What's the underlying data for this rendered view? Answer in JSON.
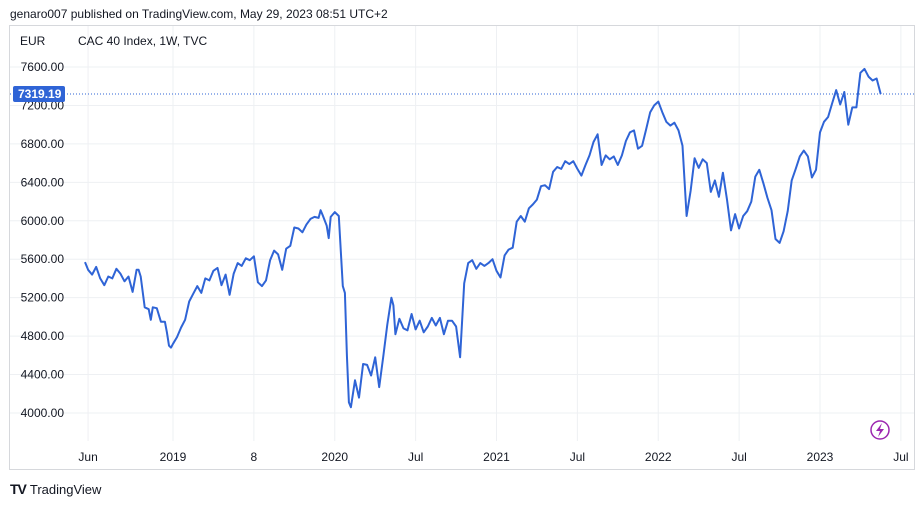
{
  "header": {
    "text": "genaro007 published on TradingView.com, May 29, 2023 08:51 UTC+2"
  },
  "footer": {
    "brand": "TradingView",
    "logo": "TV"
  },
  "colors": {
    "line": "#2f64d6",
    "grid": "#eef0f3",
    "axis_text": "#131722",
    "price_tag": "#2f64d6",
    "bolt": "#9c27b0"
  },
  "icons": {
    "bolt": "lightning-icon"
  },
  "chart_data": {
    "type": "line",
    "currency": "EUR",
    "title": "CAC 40 Index, 1W, TVC",
    "last_price_label": "7319.19",
    "last_price": 7319.19,
    "ylim": [
      3700,
      7950
    ],
    "y_ticks": [
      "4000.00",
      "4400.00",
      "4800.00",
      "5200.00",
      "5600.00",
      "6000.00",
      "6400.00",
      "6800.00",
      "7200.00",
      "7600.00"
    ],
    "x_ticks": [
      {
        "label": "Jun",
        "x": 0
      },
      {
        "label": "2019",
        "x": 4.2
      },
      {
        "label": "8",
        "x": 8.2
      },
      {
        "label": "2020",
        "x": 12.2
      },
      {
        "label": "Jul",
        "x": 16.2
      },
      {
        "label": "2021",
        "x": 20.2
      },
      {
        "label": "Jul",
        "x": 24.2
      },
      {
        "label": "2022",
        "x": 28.2
      },
      {
        "label": "Jul",
        "x": 32.2
      },
      {
        "label": "2023",
        "x": 36.2
      },
      {
        "label": "Jul",
        "x": 40.2
      }
    ],
    "grid": true,
    "series": [
      {
        "values": [
          [
            -0.15,
            5570
          ],
          [
            0,
            5490
          ],
          [
            0.2,
            5440
          ],
          [
            0.4,
            5520
          ],
          [
            0.6,
            5400
          ],
          [
            0.8,
            5330
          ],
          [
            1.0,
            5420
          ],
          [
            1.2,
            5400
          ],
          [
            1.4,
            5500
          ],
          [
            1.6,
            5450
          ],
          [
            1.8,
            5370
          ],
          [
            2.0,
            5420
          ],
          [
            2.2,
            5260
          ],
          [
            2.4,
            5490
          ],
          [
            2.5,
            5490
          ],
          [
            2.6,
            5420
          ],
          [
            2.8,
            5100
          ],
          [
            3.0,
            5080
          ],
          [
            3.1,
            4970
          ],
          [
            3.2,
            5100
          ],
          [
            3.4,
            5090
          ],
          [
            3.6,
            4950
          ],
          [
            3.8,
            4950
          ],
          [
            3.9,
            4840
          ],
          [
            4.0,
            4700
          ],
          [
            4.1,
            4680
          ],
          [
            4.2,
            4720
          ],
          [
            4.4,
            4790
          ],
          [
            4.6,
            4890
          ],
          [
            4.8,
            4970
          ],
          [
            5.0,
            5160
          ],
          [
            5.2,
            5240
          ],
          [
            5.4,
            5320
          ],
          [
            5.6,
            5250
          ],
          [
            5.8,
            5400
          ],
          [
            6.0,
            5380
          ],
          [
            6.2,
            5480
          ],
          [
            6.4,
            5510
          ],
          [
            6.6,
            5330
          ],
          [
            6.8,
            5440
          ],
          [
            7.0,
            5230
          ],
          [
            7.2,
            5450
          ],
          [
            7.4,
            5560
          ],
          [
            7.6,
            5530
          ],
          [
            7.8,
            5610
          ],
          [
            8.0,
            5590
          ],
          [
            8.2,
            5630
          ],
          [
            8.4,
            5360
          ],
          [
            8.6,
            5320
          ],
          [
            8.8,
            5380
          ],
          [
            9.0,
            5590
          ],
          [
            9.2,
            5690
          ],
          [
            9.4,
            5650
          ],
          [
            9.6,
            5490
          ],
          [
            9.8,
            5710
          ],
          [
            10.0,
            5740
          ],
          [
            10.2,
            5930
          ],
          [
            10.4,
            5920
          ],
          [
            10.6,
            5880
          ],
          [
            10.8,
            5960
          ],
          [
            11.0,
            6020
          ],
          [
            11.2,
            6040
          ],
          [
            11.4,
            6030
          ],
          [
            11.5,
            6110
          ],
          [
            11.6,
            6060
          ],
          [
            11.8,
            5950
          ],
          [
            11.9,
            5820
          ],
          [
            12.0,
            6040
          ],
          [
            12.2,
            6090
          ],
          [
            12.4,
            6050
          ],
          [
            12.6,
            5320
          ],
          [
            12.7,
            5250
          ],
          [
            12.8,
            4600
          ],
          [
            12.9,
            4110
          ],
          [
            13.0,
            4060
          ],
          [
            13.2,
            4340
          ],
          [
            13.4,
            4160
          ],
          [
            13.6,
            4510
          ],
          [
            13.8,
            4500
          ],
          [
            14.0,
            4390
          ],
          [
            14.2,
            4580
          ],
          [
            14.4,
            4270
          ],
          [
            14.6,
            4590
          ],
          [
            14.8,
            4920
          ],
          [
            15.0,
            5200
          ],
          [
            15.1,
            5120
          ],
          [
            15.2,
            4820
          ],
          [
            15.4,
            4980
          ],
          [
            15.6,
            4880
          ],
          [
            15.8,
            4860
          ],
          [
            16.0,
            5030
          ],
          [
            16.2,
            4870
          ],
          [
            16.4,
            4960
          ],
          [
            16.6,
            4840
          ],
          [
            16.8,
            4900
          ],
          [
            17.0,
            4990
          ],
          [
            17.2,
            4910
          ],
          [
            17.4,
            4990
          ],
          [
            17.6,
            4820
          ],
          [
            17.8,
            4960
          ],
          [
            18.0,
            4960
          ],
          [
            18.2,
            4900
          ],
          [
            18.4,
            4580
          ],
          [
            18.6,
            5350
          ],
          [
            18.8,
            5560
          ],
          [
            19.0,
            5590
          ],
          [
            19.2,
            5500
          ],
          [
            19.4,
            5560
          ],
          [
            19.6,
            5530
          ],
          [
            19.8,
            5560
          ],
          [
            20.0,
            5600
          ],
          [
            20.2,
            5480
          ],
          [
            20.4,
            5410
          ],
          [
            20.6,
            5640
          ],
          [
            20.8,
            5700
          ],
          [
            21.0,
            5720
          ],
          [
            21.2,
            5990
          ],
          [
            21.4,
            6050
          ],
          [
            21.6,
            5990
          ],
          [
            21.8,
            6130
          ],
          [
            22.0,
            6170
          ],
          [
            22.2,
            6220
          ],
          [
            22.4,
            6360
          ],
          [
            22.6,
            6370
          ],
          [
            22.8,
            6330
          ],
          [
            23.0,
            6510
          ],
          [
            23.2,
            6560
          ],
          [
            23.4,
            6540
          ],
          [
            23.6,
            6620
          ],
          [
            23.8,
            6590
          ],
          [
            24.0,
            6620
          ],
          [
            24.2,
            6540
          ],
          [
            24.4,
            6470
          ],
          [
            24.6,
            6580
          ],
          [
            24.8,
            6680
          ],
          [
            25.0,
            6820
          ],
          [
            25.2,
            6900
          ],
          [
            25.4,
            6580
          ],
          [
            25.6,
            6680
          ],
          [
            25.8,
            6640
          ],
          [
            26.0,
            6670
          ],
          [
            26.2,
            6580
          ],
          [
            26.4,
            6680
          ],
          [
            26.6,
            6830
          ],
          [
            26.8,
            6920
          ],
          [
            27.0,
            6940
          ],
          [
            27.2,
            6750
          ],
          [
            27.4,
            6780
          ],
          [
            27.6,
            6950
          ],
          [
            27.8,
            7130
          ],
          [
            28.0,
            7200
          ],
          [
            28.2,
            7240
          ],
          [
            28.4,
            7130
          ],
          [
            28.6,
            7030
          ],
          [
            28.8,
            6990
          ],
          [
            29.0,
            7020
          ],
          [
            29.2,
            6940
          ],
          [
            29.4,
            6780
          ],
          [
            29.6,
            6050
          ],
          [
            29.8,
            6310
          ],
          [
            30.0,
            6650
          ],
          [
            30.2,
            6550
          ],
          [
            30.4,
            6640
          ],
          [
            30.6,
            6600
          ],
          [
            30.8,
            6300
          ],
          [
            31.0,
            6420
          ],
          [
            31.2,
            6250
          ],
          [
            31.4,
            6500
          ],
          [
            31.6,
            6220
          ],
          [
            31.8,
            5900
          ],
          [
            32.0,
            6070
          ],
          [
            32.2,
            5920
          ],
          [
            32.4,
            6050
          ],
          [
            32.6,
            6100
          ],
          [
            32.8,
            6200
          ],
          [
            33.0,
            6460
          ],
          [
            33.2,
            6530
          ],
          [
            33.4,
            6390
          ],
          [
            33.6,
            6240
          ],
          [
            33.8,
            6110
          ],
          [
            34.0,
            5810
          ],
          [
            34.2,
            5770
          ],
          [
            34.4,
            5890
          ],
          [
            34.6,
            6100
          ],
          [
            34.8,
            6420
          ],
          [
            35.0,
            6540
          ],
          [
            35.2,
            6670
          ],
          [
            35.4,
            6730
          ],
          [
            35.6,
            6670
          ],
          [
            35.8,
            6450
          ],
          [
            36.0,
            6530
          ],
          [
            36.2,
            6920
          ],
          [
            36.4,
            7030
          ],
          [
            36.6,
            7080
          ],
          [
            36.8,
            7220
          ],
          [
            37.0,
            7360
          ],
          [
            37.2,
            7210
          ],
          [
            37.4,
            7340
          ],
          [
            37.6,
            7000
          ],
          [
            37.8,
            7180
          ],
          [
            38.0,
            7180
          ],
          [
            38.2,
            7540
          ],
          [
            38.4,
            7580
          ],
          [
            38.6,
            7500
          ],
          [
            38.8,
            7460
          ],
          [
            39.0,
            7480
          ],
          [
            39.2,
            7319.19
          ]
        ]
      }
    ]
  }
}
